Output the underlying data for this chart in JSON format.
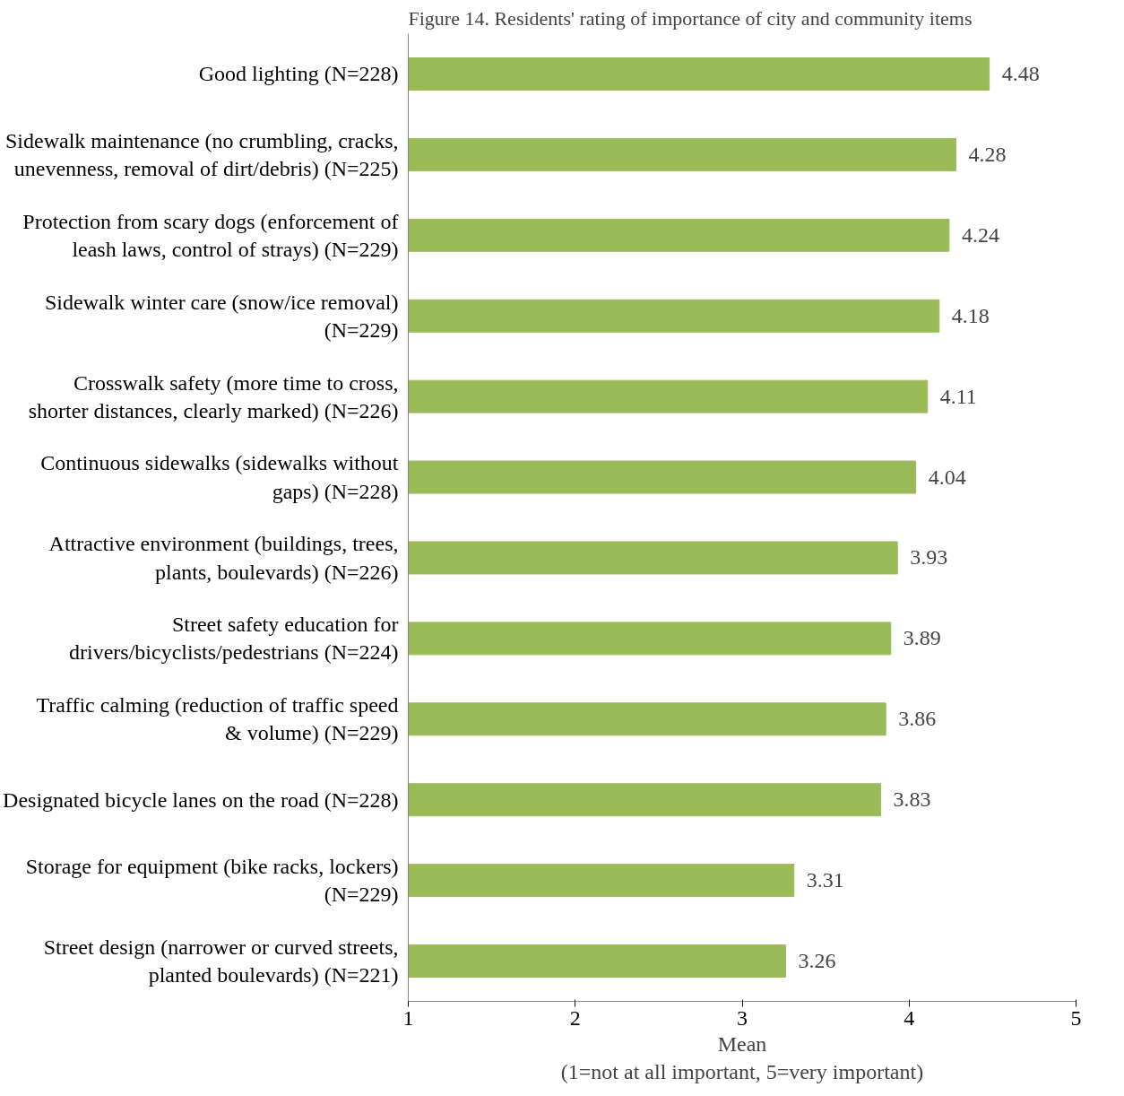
{
  "chart_data": {
    "type": "bar",
    "orientation": "horizontal",
    "title": "Figure 14. Residents' rating of importance of city and community items",
    "categories": [
      "Good lighting (N=228)",
      "Sidewalk maintenance (no crumbling, cracks, unevenness, removal of dirt/debris) (N=225)",
      "Protection from scary dogs (enforcement of leash laws, control of strays) (N=229)",
      "Sidewalk winter care (snow/ice removal) (N=229)",
      "Crosswalk safety (more time to cross, shorter distances, clearly marked) (N=226)",
      "Continuous sidewalks (sidewalks without gaps) (N=228)",
      "Attractive environment (buildings, trees, plants, boulevards) (N=226)",
      "Street safety education for drivers/bicyclists/pedestrians (N=224)",
      "Traffic calming (reduction of traffic speed & volume) (N=229)",
      "Designated bicycle lanes on the road (N=228)",
      "Storage for equipment (bike racks, lockers) (N=229)",
      "Street design (narrower or curved streets, planted boulevards) (N=221)"
    ],
    "values": [
      4.48,
      4.28,
      4.24,
      4.18,
      4.11,
      4.04,
      3.93,
      3.89,
      3.86,
      3.83,
      3.31,
      3.26
    ],
    "color": "#9bbb59",
    "data_labels": true,
    "xlim": [
      1,
      5
    ],
    "xticks": [
      1,
      2,
      3,
      4,
      5
    ],
    "xlabel": "Mean\n(1=not at all important, 5=very important)",
    "grid": false
  }
}
